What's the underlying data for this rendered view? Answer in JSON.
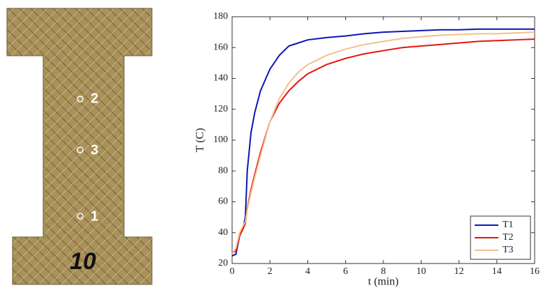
{
  "specimen": {
    "point_labels": [
      "2",
      "3",
      "1"
    ],
    "number": "10"
  },
  "chart_data": {
    "type": "line",
    "xlabel": "t (min)",
    "ylabel": "T (C)",
    "x": [
      0,
      0.2,
      0.4,
      0.6,
      0.7,
      0.8,
      1,
      1.2,
      1.5,
      2,
      2.5,
      3,
      3.5,
      4,
      5,
      6,
      7,
      8,
      9,
      10,
      11,
      12,
      13,
      14,
      15,
      16
    ],
    "series": [
      {
        "name": "T1",
        "color": "#0b14b4",
        "values": [
          25,
          26,
          38,
          44,
          50,
          80,
          105,
          118,
          132,
          146,
          155,
          161,
          163,
          165,
          166.5,
          167.5,
          169,
          170,
          170.5,
          171,
          171.5,
          171.5,
          172,
          172,
          172,
          172
        ]
      },
      {
        "name": "T2",
        "color": "#e4150f",
        "values": [
          27,
          28,
          38,
          43,
          46,
          56,
          68,
          78,
          92,
          112,
          124,
          132,
          138,
          143,
          149,
          153,
          156,
          158,
          160,
          161,
          162,
          163,
          164,
          164.5,
          165,
          165.5
        ]
      },
      {
        "name": "T3",
        "color": "#f2bf8e",
        "values": [
          26,
          30,
          40,
          45,
          47,
          55,
          66,
          76,
          90,
          112,
          127,
          137,
          144,
          149,
          155,
          159,
          162,
          164,
          166,
          167,
          168,
          168.5,
          169,
          169,
          169.5,
          170
        ]
      }
    ],
    "xlim": [
      0,
      16
    ],
    "xticks": [
      0,
      2,
      4,
      6,
      8,
      10,
      12,
      14,
      16
    ],
    "ylim": [
      20,
      180
    ],
    "yticks": [
      20,
      40,
      60,
      80,
      100,
      120,
      140,
      160,
      180
    ],
    "legend": "lower right"
  }
}
